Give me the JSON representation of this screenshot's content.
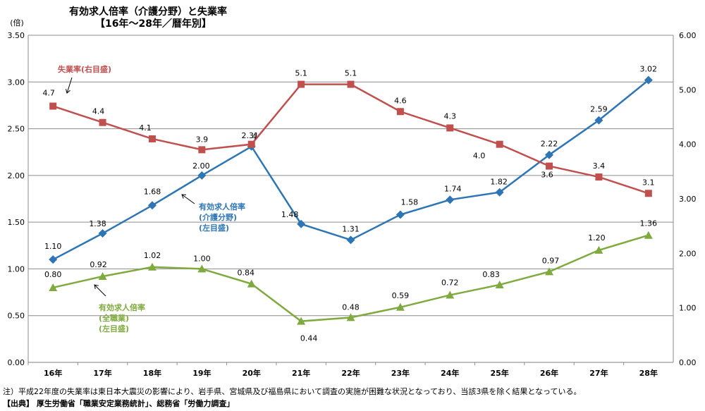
{
  "titles": {
    "line1": "有効求人倍率（介護分野）と失業率",
    "line2": "【16年～28年／暦年別】"
  },
  "notes": {
    "note1": "注）平成22年度の失業率は東日本大震災の影響により、岩手県、宮城県及び福島県において調査の実施が困難な状況となっており、当該3県を除く結果となっている。",
    "source": "【出典】 厚生労働省「職業安定業務統計」、総務省「労働力調査」"
  },
  "chart_data": {
    "type": "line",
    "categories": [
      "16年",
      "17年",
      "18年",
      "19年",
      "20年",
      "21年",
      "22年",
      "23年",
      "24年",
      "25年",
      "26年",
      "27年",
      "28年"
    ],
    "left_axis": {
      "unit_label": "(倍)",
      "range": [
        0,
        3.5
      ],
      "ticks": [
        "0.00",
        "0.50",
        "1.00",
        "1.50",
        "2.00",
        "2.50",
        "3.00",
        "3.50"
      ]
    },
    "right_axis": {
      "range": [
        0,
        6
      ],
      "ticks": [
        "0.00",
        "1.00",
        "2.00",
        "3.00",
        "4.00",
        "5.00",
        "6.00"
      ]
    },
    "grid": true,
    "series": [
      {
        "name": "有効求人倍率\n(介護分野)\n(左目盛)",
        "axis": "left",
        "color": "#2E75B6",
        "marker": "diamond",
        "values": [
          1.1,
          1.38,
          1.68,
          2.0,
          2.31,
          1.48,
          1.31,
          1.58,
          1.74,
          1.82,
          2.22,
          2.59,
          3.02
        ],
        "labels": [
          "1.10",
          "1.38",
          "1.68",
          "2.00",
          "2.31",
          "1.48",
          "1.31",
          "1.58",
          "1.74",
          "1.82",
          "2.22",
          "2.59",
          "3.02"
        ]
      },
      {
        "name": "有効求人倍率\n(全職業)\n(左目盛)",
        "axis": "left",
        "color": "#7FAA3E",
        "marker": "triangle",
        "values": [
          0.8,
          0.92,
          1.02,
          1.0,
          0.84,
          0.44,
          0.48,
          0.59,
          0.72,
          0.83,
          0.97,
          1.2,
          1.36
        ],
        "labels": [
          "0.80",
          "0.92",
          "1.02",
          "1.00",
          "0.84",
          "0.44",
          "0.48",
          "0.59",
          "0.72",
          "0.83",
          "0.97",
          "1.20",
          "1.36"
        ]
      },
      {
        "name": "失業率(右目盛)",
        "axis": "right",
        "color": "#C0504D",
        "marker": "square",
        "values": [
          4.7,
          4.4,
          4.1,
          3.9,
          4.0,
          5.1,
          5.1,
          4.6,
          4.3,
          4.0,
          3.6,
          3.4,
          3.1
        ],
        "labels": [
          "4.7",
          "4.4",
          "4.1",
          "3.9",
          "4",
          "5.1",
          "5.1",
          "4.6",
          "4.3",
          "4.0",
          "3.6",
          "3.4",
          "3.1"
        ]
      }
    ],
    "annotations": [
      {
        "series": 2,
        "text": "失業率(右目盛)"
      },
      {
        "series": 0,
        "text": "有効求人倍率\n(介護分野)\n(左目盛)"
      },
      {
        "series": 1,
        "text": "有効求人倍率\n(全職業)\n(左目盛)"
      }
    ]
  }
}
